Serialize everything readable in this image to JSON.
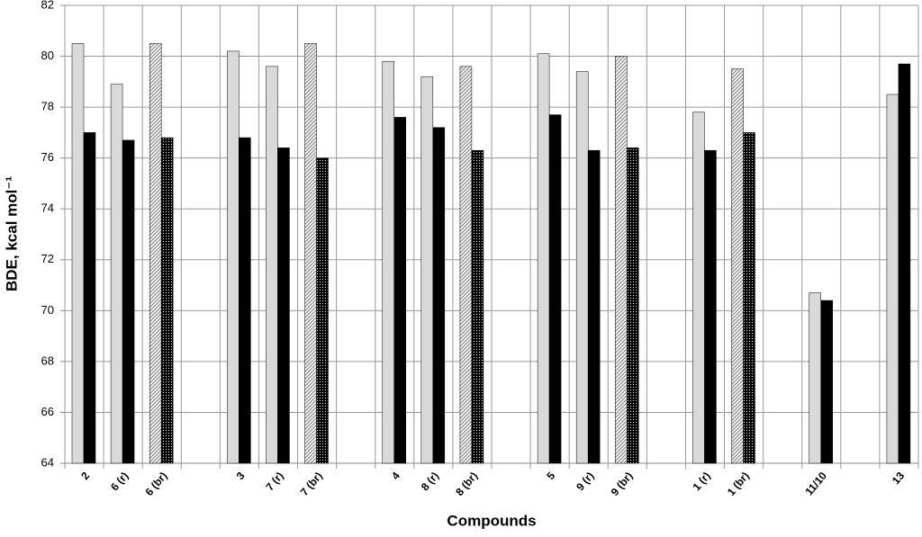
{
  "chart_data": {
    "type": "bar",
    "x_label": "Compounds",
    "y_label": "BDE, kcal mol⁻¹",
    "categories": [
      "2",
      "6 (r)",
      "6 (br)",
      null,
      "3",
      "7 (r)",
      "7 (br)",
      null,
      "4",
      "8 (r)",
      "8 (br)",
      null,
      "5",
      "9 (r)",
      "9 (br)",
      null,
      "1 (r)",
      "1 (br)",
      null,
      "11/10",
      null,
      "13"
    ],
    "series": [
      {
        "color": "#d9d9d9",
        "values": [
          80.5,
          78.9,
          null,
          null,
          80.2,
          79.6,
          null,
          null,
          79.8,
          79.2,
          null,
          null,
          80.1,
          79.4,
          null,
          null,
          77.8,
          null,
          null,
          70.7,
          null,
          78.5
        ]
      },
      {
        "color": "#000000",
        "values": [
          77.0,
          76.7,
          null,
          null,
          76.8,
          76.4,
          null,
          null,
          77.6,
          77.2,
          null,
          null,
          77.7,
          76.3,
          null,
          null,
          76.3,
          null,
          null,
          70.4,
          null,
          79.7
        ]
      },
      {
        "color": "#999999",
        "pattern": "hatch",
        "values": [
          null,
          null,
          80.5,
          null,
          null,
          null,
          80.5,
          null,
          null,
          null,
          79.6,
          null,
          null,
          null,
          80.0,
          null,
          null,
          79.5,
          null,
          null,
          null,
          null
        ]
      },
      {
        "color": "#000000",
        "pattern": "dots",
        "values": [
          null,
          null,
          76.8,
          null,
          null,
          null,
          76.0,
          null,
          null,
          null,
          76.3,
          null,
          null,
          null,
          76.4,
          null,
          null,
          77.0,
          null,
          null,
          null,
          null
        ]
      }
    ],
    "ylim": [
      64,
      82
    ],
    "yticks": [
      64,
      66,
      68,
      70,
      72,
      74,
      76,
      78,
      80,
      82
    ],
    "grid": true
  }
}
